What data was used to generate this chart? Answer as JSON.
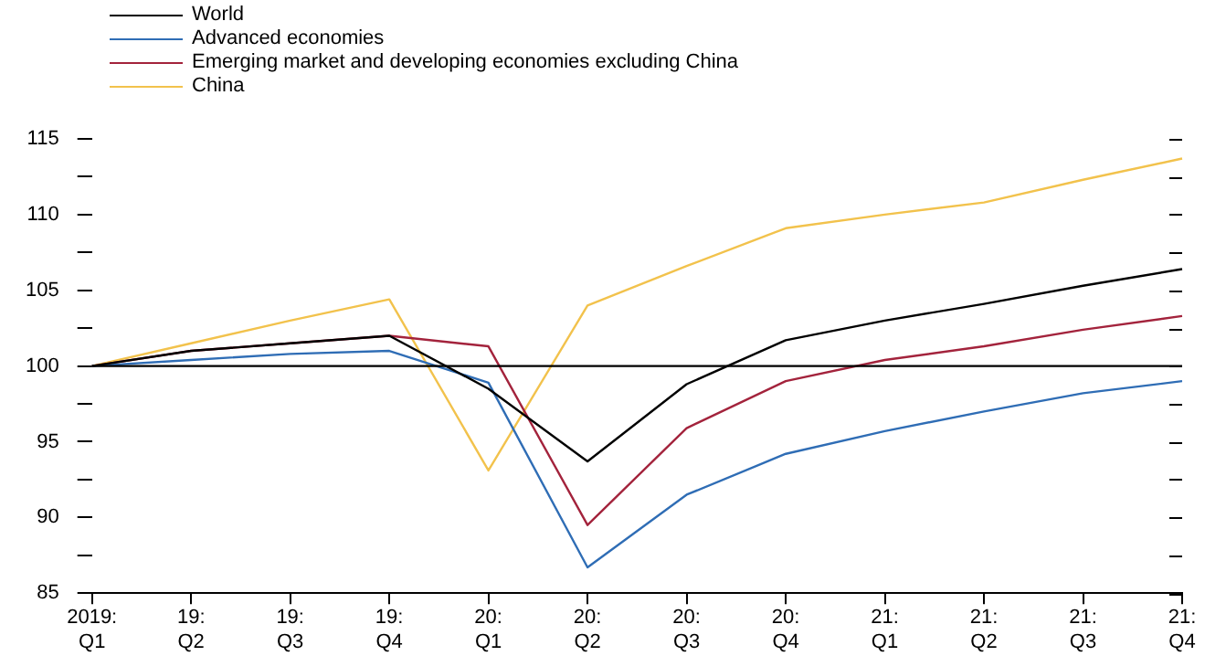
{
  "chart_data": {
    "type": "line",
    "categories": [
      "2019:\nQ1",
      "19:\nQ2",
      "19:\nQ3",
      "19:\nQ4",
      "20:\nQ1",
      "20:\nQ2",
      "20:\nQ3",
      "20:\nQ4",
      "21:\nQ1",
      "21:\nQ2",
      "21:\nQ3",
      "21:\nQ4"
    ],
    "series": [
      {
        "name": "World",
        "color": "#000000",
        "values": [
          100,
          101,
          101.5,
          102,
          98.5,
          93.7,
          98.8,
          101.7,
          103,
          104.1,
          105.3,
          106.4
        ]
      },
      {
        "name": "Advanced economies",
        "color": "#2f6db5",
        "values": [
          100,
          100.4,
          100.8,
          101,
          98.9,
          86.7,
          91.5,
          94.2,
          95.7,
          97,
          98.2,
          99
        ]
      },
      {
        "name": "Emerging market and developing economies excluding China",
        "color": "#a3233c",
        "values": [
          100,
          101,
          101.5,
          102,
          101.3,
          89.5,
          95.9,
          99,
          100.4,
          101.3,
          102.4,
          103.3
        ]
      },
      {
        "name": "China",
        "color": "#f2c24c",
        "values": [
          100,
          101.5,
          103,
          104.4,
          93.1,
          104,
          106.6,
          109.1,
          110,
          110.8,
          112.3,
          113.7
        ]
      }
    ],
    "ylim": [
      85,
      115
    ],
    "yticks": [
      85,
      {
        "value": 87.5,
        "label": null
      },
      90,
      {
        "value": 92.5,
        "label": null
      },
      95,
      {
        "value": 97.5,
        "label": null
      },
      100,
      {
        "value": 102.5,
        "label": null
      },
      105,
      {
        "value": 107.5,
        "label": null
      },
      110,
      {
        "value": 112.5,
        "label": null
      },
      115
    ],
    "ref_lines": [
      {
        "axis": "y",
        "value": 100,
        "color": "#000000"
      }
    ],
    "grid": false,
    "legend": "top left",
    "marker": "none",
    "line_style": "solid"
  }
}
